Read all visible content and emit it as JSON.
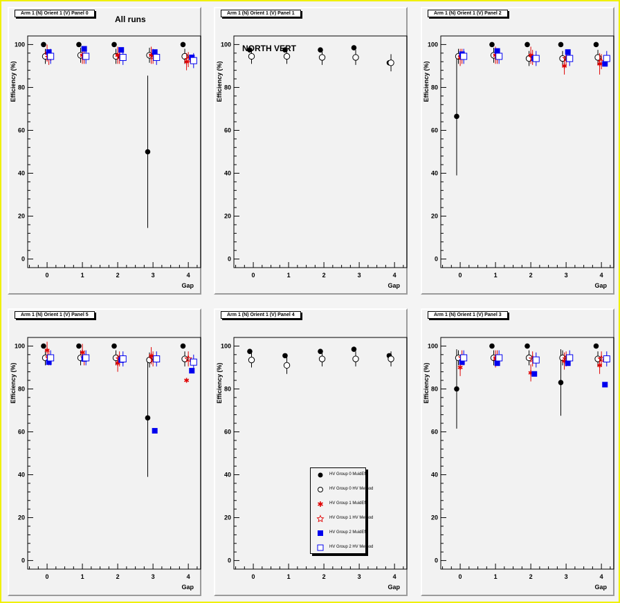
{
  "panels": [
    {
      "title": "Arm 1 (N) Orient 1 (V) Panel 0",
      "overlay_text": "All runs",
      "ylabel": "Efficiency (%)",
      "xlabel": "Gap",
      "xticks": [
        "0",
        "1",
        "2",
        "3",
        "4"
      ],
      "yticks": [
        "0",
        "20",
        "40",
        "60",
        "80",
        "100"
      ]
    },
    {
      "title": "Arm 1 (N) Orient 1 (V) Panel 1",
      "overlay_text": "NORTH VERT",
      "ylabel": "Efficiency (%)",
      "xlabel": "Gap",
      "xticks": [
        "0",
        "1",
        "2",
        "3",
        "4"
      ],
      "yticks": [
        "0",
        "20",
        "40",
        "60",
        "80",
        "100"
      ]
    },
    {
      "title": "Arm 1 (N) Orient 1 (V) Panel 2",
      "overlay_text": "",
      "ylabel": "Efficiency (%)",
      "xlabel": "Gap",
      "xticks": [
        "0",
        "1",
        "2",
        "3",
        "4"
      ],
      "yticks": [
        "0",
        "20",
        "40",
        "60",
        "80",
        "100"
      ]
    },
    {
      "title": "Arm 1 (N) Orient 1 (V) Panel 5",
      "overlay_text": "",
      "ylabel": "Efficiency (%)",
      "xlabel": "Gap",
      "xticks": [
        "0",
        "1",
        "2",
        "3",
        "4"
      ],
      "yticks": [
        "0",
        "20",
        "40",
        "60",
        "80",
        "100"
      ]
    },
    {
      "title": "Arm 1 (N) Orient 1 (V) Panel 4",
      "overlay_text": "",
      "ylabel": "Efficiency (%)",
      "xlabel": "Gap",
      "xticks": [
        "0",
        "1",
        "2",
        "3",
        "4"
      ],
      "yticks": [
        "0",
        "20",
        "40",
        "60",
        "80",
        "100"
      ]
    },
    {
      "title": "Arm 1 (N) Orient 1 (V) Panel 3",
      "overlay_text": "",
      "ylabel": "Efficiency (%)",
      "xlabel": "Gap",
      "xticks": [
        "0",
        "1",
        "2",
        "3",
        "4"
      ],
      "yticks": [
        "0",
        "20",
        "40",
        "60",
        "80",
        "100"
      ]
    }
  ],
  "legend": {
    "entries": [
      "HV Group 0 MuidEff",
      "HV Group 0 HV Method",
      "HV Group 1 MuidEff",
      "HV Group 1 HV Method",
      "HV Group 2 MuidEff",
      "HV Group 2 HV Method"
    ]
  },
  "colors": {
    "black": "#000000",
    "red": "#e00000",
    "blue": "#0000ee",
    "frame": "#f0f000"
  },
  "chart_data": [
    {
      "type": "scatter",
      "panel": 0,
      "ylim": [
        -4,
        104
      ],
      "xlim": [
        -0.55,
        4.35
      ],
      "grid": false,
      "series": [
        {
          "name": "HV Group 0 MuidEff",
          "marker": "filled-circle",
          "color": "#000000",
          "x": [
            -0.1,
            0.9,
            1.9,
            2.85,
            3.85
          ],
          "y": [
            100,
            100,
            100,
            50,
            100
          ],
          "err": [
            0,
            0,
            0,
            35.5,
            0
          ]
        },
        {
          "name": "HV Group 0 HV Method",
          "marker": "open-circle",
          "color": "#000000",
          "x": [
            -0.05,
            0.95,
            1.95,
            2.9,
            3.9
          ],
          "y": [
            94.5,
            95,
            94.5,
            95,
            94.5
          ],
          "err": [
            3.5,
            3.5,
            3.5,
            3.5,
            3.5
          ]
        },
        {
          "name": "HV Group 1 MuidEff",
          "marker": "star",
          "color": "#e00000",
          "x": [
            0,
            1,
            2,
            2.95,
            3.95
          ],
          "y": [
            96,
            95,
            95,
            95,
            92
          ],
          "err": [
            4,
            4,
            4,
            4,
            4
          ]
        },
        {
          "name": "HV Group 1 HV Method",
          "marker": "open-star",
          "color": "#e00000",
          "x": [
            0.05,
            1.05,
            2.05,
            3.0,
            4.0
          ],
          "y": [
            94,
            94.5,
            94.5,
            94.5,
            93
          ],
          "err": [
            3.5,
            3.5,
            3.5,
            3.5,
            3.5
          ]
        },
        {
          "name": "HV Group 2 MuidEff",
          "marker": "filled-square",
          "color": "#0000ee",
          "x": [
            0.05,
            1.05,
            2.1,
            3.05,
            4.1
          ],
          "y": [
            96.5,
            98,
            97.5,
            96.5,
            94
          ],
          "err": [
            0,
            0,
            0,
            0,
            0
          ]
        },
        {
          "name": "HV Group 2 HV Method",
          "marker": "open-square",
          "color": "#0000ee",
          "x": [
            0.1,
            1.1,
            2.15,
            3.1,
            4.15
          ],
          "y": [
            94.5,
            94.5,
            94,
            94,
            92.5
          ],
          "err": [
            3.5,
            3.5,
            3.5,
            3.5,
            3.5
          ]
        }
      ]
    },
    {
      "type": "scatter",
      "panel": 1,
      "ylim": [
        -4,
        104
      ],
      "xlim": [
        -0.55,
        4.35
      ],
      "grid": false,
      "series": [
        {
          "name": "HV Group 0 MuidEff",
          "marker": "filled-circle",
          "color": "#000000",
          "x": [
            -0.1,
            0.9,
            1.9,
            2.85,
            3.85
          ],
          "y": [
            97.5,
            97.5,
            97.5,
            98.5,
            91.5
          ],
          "err": [
            0,
            0,
            0,
            0,
            0
          ]
        },
        {
          "name": "HV Group 0 HV Method",
          "marker": "open-circle",
          "color": "#000000",
          "x": [
            -0.05,
            0.95,
            1.95,
            2.9,
            3.9
          ],
          "y": [
            94.5,
            94.5,
            94,
            94,
            91.5
          ],
          "err": [
            3.5,
            3.5,
            3.5,
            3.5,
            4
          ]
        }
      ]
    },
    {
      "type": "scatter",
      "panel": 2,
      "ylim": [
        -4,
        104
      ],
      "xlim": [
        -0.55,
        4.35
      ],
      "grid": false,
      "series": [
        {
          "name": "HV Group 0 MuidEff",
          "marker": "filled-circle",
          "color": "#000000",
          "x": [
            -0.1,
            0.9,
            1.9,
            2.85,
            3.85
          ],
          "y": [
            66.5,
            100,
            100,
            100,
            100
          ],
          "err": [
            27.5,
            0,
            0,
            0,
            0
          ]
        },
        {
          "name": "HV Group 0 HV Method",
          "marker": "open-circle",
          "color": "#000000",
          "x": [
            -0.05,
            0.95,
            1.95,
            2.9,
            3.9
          ],
          "y": [
            94.5,
            95,
            93.5,
            93.5,
            94
          ],
          "err": [
            3.5,
            3.5,
            3.5,
            3.5,
            3.5
          ]
        },
        {
          "name": "HV Group 1 MuidEff",
          "marker": "star",
          "color": "#e00000",
          "x": [
            0,
            1,
            2,
            2.95,
            3.95
          ],
          "y": [
            94,
            95,
            95,
            90,
            91
          ],
          "err": [
            4,
            4,
            4,
            4,
            5
          ]
        },
        {
          "name": "HV Group 1 HV Method",
          "marker": "open-star",
          "color": "#e00000",
          "x": [
            0.05,
            1.05,
            2.05,
            3.0,
            4.0
          ],
          "y": [
            94.5,
            94.5,
            94,
            93.5,
            92
          ],
          "err": [
            3.5,
            3.5,
            3.5,
            3.5,
            3.5
          ]
        },
        {
          "name": "HV Group 2 MuidEff",
          "marker": "filled-square",
          "color": "#0000ee",
          "x": [
            0.05,
            1.05,
            2.1,
            3.05,
            4.1
          ],
          "y": [
            95.5,
            97,
            93.5,
            96.5,
            91
          ],
          "err": [
            0,
            0,
            0,
            0,
            0
          ]
        },
        {
          "name": "HV Group 2 HV Method",
          "marker": "open-square",
          "color": "#0000ee",
          "x": [
            0.1,
            1.1,
            2.15,
            3.1,
            4.15
          ],
          "y": [
            94.5,
            94.5,
            93.5,
            93.5,
            93.5
          ],
          "err": [
            3.5,
            3.5,
            3.5,
            3.5,
            3.5
          ]
        }
      ]
    },
    {
      "type": "scatter",
      "panel": 5,
      "ylim": [
        -4,
        104
      ],
      "xlim": [
        -0.55,
        4.35
      ],
      "grid": false,
      "series": [
        {
          "name": "HV Group 0 MuidEff",
          "marker": "filled-circle",
          "color": "#000000",
          "x": [
            -0.1,
            0.9,
            1.9,
            2.85,
            3.85
          ],
          "y": [
            100,
            100,
            100,
            66.5,
            100
          ],
          "err": [
            0,
            0,
            0,
            27.5,
            0
          ]
        },
        {
          "name": "HV Group 0 HV Method",
          "marker": "open-circle",
          "color": "#000000",
          "x": [
            -0.05,
            0.95,
            1.95,
            2.9,
            3.9
          ],
          "y": [
            94.5,
            94.5,
            94.5,
            93.5,
            94
          ],
          "err": [
            3.5,
            3.5,
            3.5,
            3.5,
            3.5
          ]
        },
        {
          "name": "HV Group 1 MuidEff",
          "marker": "star",
          "color": "#e00000",
          "x": [
            0,
            1,
            2,
            2.95,
            3.95
          ],
          "y": [
            98,
            97,
            92,
            95.5,
            84
          ],
          "err": [
            4,
            4,
            4,
            4,
            0
          ]
        },
        {
          "name": "HV Group 1 HV Method",
          "marker": "open-star",
          "color": "#e00000",
          "x": [
            0.05,
            1.05,
            2.05,
            3.0,
            4.0
          ],
          "y": [
            94.5,
            94.5,
            94,
            94,
            94
          ],
          "err": [
            3.5,
            3.5,
            3.5,
            3.5,
            3.5
          ]
        },
        {
          "name": "HV Group 2 MuidEff",
          "marker": "filled-square",
          "color": "#0000ee",
          "x": [
            0.05,
            1.05,
            2.1,
            3.05,
            4.1
          ],
          "y": [
            92.5,
            94,
            93.5,
            60.5,
            88.5
          ],
          "err": [
            0,
            0,
            0,
            0,
            0
          ]
        },
        {
          "name": "HV Group 2 HV Method",
          "marker": "open-square",
          "color": "#0000ee",
          "x": [
            0.1,
            1.1,
            2.15,
            3.1,
            4.15
          ],
          "y": [
            94.5,
            94.5,
            94,
            94,
            92.5
          ],
          "err": [
            3.5,
            3.5,
            3.5,
            3.5,
            3.5
          ]
        }
      ]
    },
    {
      "type": "scatter",
      "panel": 4,
      "ylim": [
        -4,
        104
      ],
      "xlim": [
        -0.55,
        4.35
      ],
      "grid": false,
      "series": [
        {
          "name": "HV Group 0 MuidEff",
          "marker": "filled-circle",
          "color": "#000000",
          "x": [
            -0.1,
            0.9,
            1.9,
            2.85,
            3.85
          ],
          "y": [
            97.5,
            95.5,
            97.5,
            98.5,
            95.5
          ],
          "err": [
            0,
            0,
            0,
            0,
            0
          ]
        },
        {
          "name": "HV Group 0 HV Method",
          "marker": "open-circle",
          "color": "#000000",
          "x": [
            -0.05,
            0.95,
            1.95,
            2.9,
            3.9
          ],
          "y": [
            93.5,
            91,
            94,
            94,
            94
          ],
          "err": [
            3.5,
            4,
            3.5,
            3.5,
            3.5
          ]
        }
      ]
    },
    {
      "type": "scatter",
      "panel": 3,
      "ylim": [
        -4,
        104
      ],
      "xlim": [
        -0.55,
        4.35
      ],
      "grid": false,
      "series": [
        {
          "name": "HV Group 0 MuidEff",
          "marker": "filled-circle",
          "color": "#000000",
          "x": [
            -0.1,
            0.9,
            1.9,
            2.85,
            3.85
          ],
          "y": [
            80,
            100,
            100,
            83,
            100
          ],
          "err": [
            18.5,
            0,
            0,
            15.5,
            0
          ]
        },
        {
          "name": "HV Group 0 HV Method",
          "marker": "open-circle",
          "color": "#000000",
          "x": [
            -0.05,
            0.95,
            1.95,
            2.9,
            3.9
          ],
          "y": [
            94.5,
            94.5,
            94.5,
            94.5,
            94
          ],
          "err": [
            3.5,
            3.5,
            3.5,
            3.5,
            3.5
          ]
        },
        {
          "name": "HV Group 1 MuidEff",
          "marker": "star",
          "color": "#e00000",
          "x": [
            0,
            1,
            2,
            2.95,
            3.95
          ],
          "y": [
            90,
            94,
            87.5,
            93,
            91
          ],
          "err": [
            4,
            4,
            4,
            4,
            4
          ]
        },
        {
          "name": "HV Group 1 HV Method",
          "marker": "open-star",
          "color": "#e00000",
          "x": [
            0.05,
            1.05,
            2.05,
            3.0,
            4.0
          ],
          "y": [
            94.5,
            94.5,
            94,
            94,
            94
          ],
          "err": [
            3.5,
            3.5,
            3.5,
            3.5,
            3.5
          ]
        },
        {
          "name": "HV Group 2 MuidEff",
          "marker": "filled-square",
          "color": "#0000ee",
          "x": [
            0.05,
            1.05,
            2.1,
            3.05,
            4.1
          ],
          "y": [
            92.5,
            92,
            87,
            92,
            82
          ],
          "err": [
            0,
            0,
            0,
            0,
            0
          ]
        },
        {
          "name": "HV Group 2 HV Method",
          "marker": "open-square",
          "color": "#0000ee",
          "x": [
            0.1,
            1.1,
            2.15,
            3.1,
            4.15
          ],
          "y": [
            94.5,
            94.5,
            93.5,
            94.5,
            94
          ],
          "err": [
            3.5,
            3.5,
            3.5,
            3.5,
            3.5
          ]
        }
      ]
    }
  ]
}
